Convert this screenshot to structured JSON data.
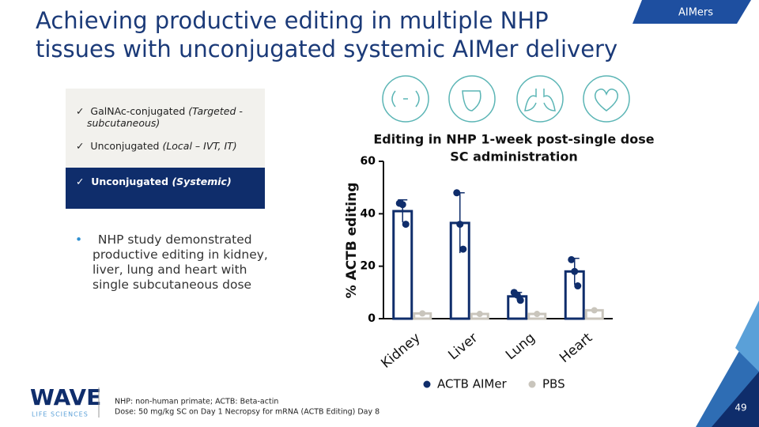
{
  "header": {
    "title_lines": [
      "Achieving productive editing in multiple NHP",
      "tissues with unconjugated systemic AIMer delivery"
    ],
    "tag": "AIMers"
  },
  "checklist": [
    {
      "text": "GalNAc-conjugated",
      "note": "(Targeted - subcutaneous)"
    },
    {
      "text": "Unconjugated",
      "note": "(Local – IVT, IT)"
    },
    {
      "text": "Unconjugated",
      "note": "(Systemic)"
    }
  ],
  "bullet": "NHP study demonstrated productive editing in kidney, liver, lung and heart with single subcutaneous dose",
  "chart_data": {
    "type": "bar",
    "title_lines": [
      "Editing in NHP 1-week post-single dose",
      "SC administration"
    ],
    "y_label": "% ACTB editing",
    "categories": [
      "Kidney",
      "Liver",
      "Lung",
      "Heart"
    ],
    "series": [
      {
        "name": "ACTB AIMer",
        "color": "#0f2d6b",
        "values": [
          41,
          36.5,
          8.5,
          18
        ],
        "errors": [
          4.3,
          11.5,
          1.5,
          5
        ],
        "points": [
          [
            44,
            43.5,
            36
          ],
          [
            48,
            36,
            26.5
          ],
          [
            10,
            9,
            7
          ],
          [
            22.5,
            18,
            12.5
          ]
        ]
      },
      {
        "name": "PBS",
        "color": "#c9c5bc",
        "values": [
          2,
          1.8,
          1.8,
          3.2
        ]
      }
    ],
    "ylim": [
      0,
      60
    ],
    "yticks": [
      0,
      20,
      40,
      60
    ]
  },
  "footer": {
    "logo": "WAVE",
    "logo_sub": "LIFE SCIENCES",
    "notes": [
      "NHP: non-human primate; ACTB: Beta-actin",
      "Dose: 50 mg/kg SC on Day 1 Necropsy for mRNA (ACTB Editing) Day 8"
    ],
    "page": "49"
  }
}
